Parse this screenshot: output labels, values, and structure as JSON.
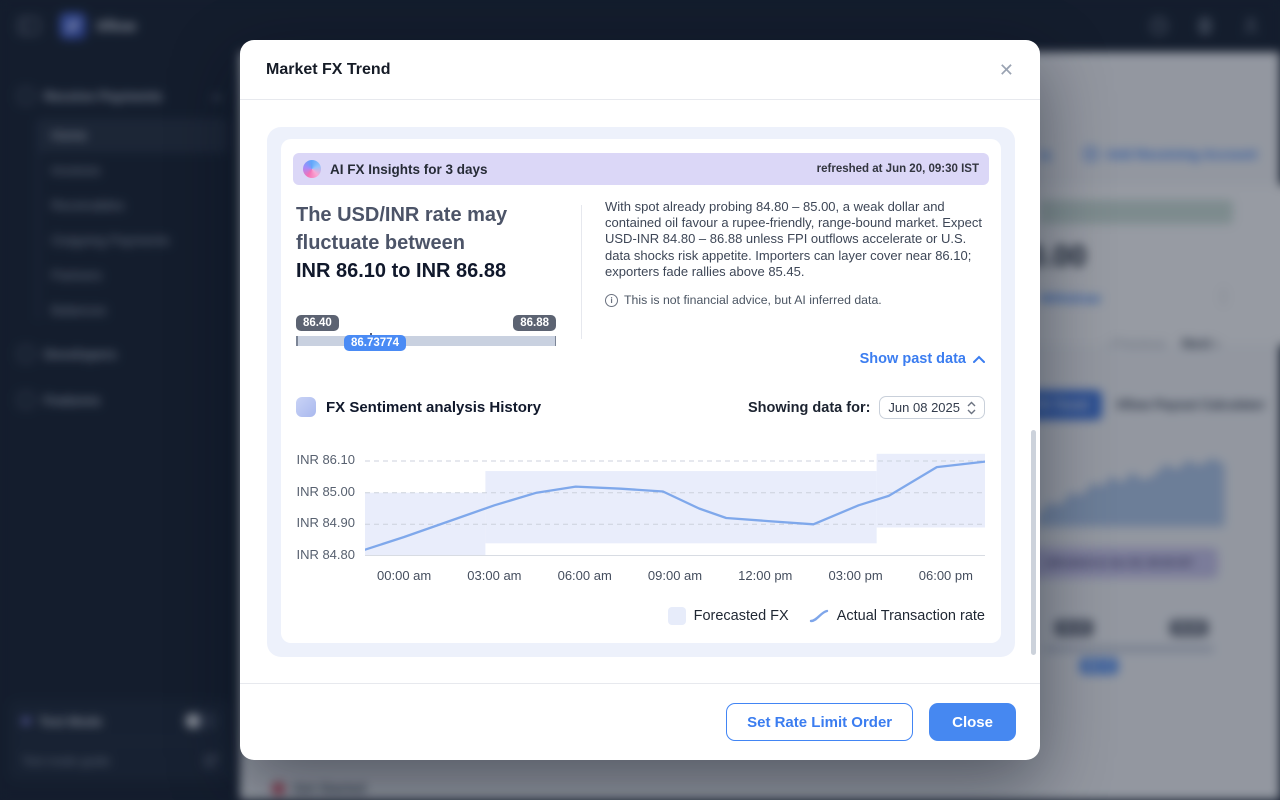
{
  "colors": {
    "accent_blue": "#4285f4",
    "chart_line_blue": "#7fa8eb",
    "forecast_band": "#e9edfb",
    "insights_bar_purple": "#dbd7f7",
    "outer_card_lavender": "#edf1fb"
  },
  "app": {
    "brand": "Xflow",
    "sidebar": {
      "section_label": "Receive Payments",
      "items": [
        {
          "label": "Home",
          "active": true
        },
        {
          "label": "Invoices",
          "active": false
        },
        {
          "label": "Receivables",
          "active": false
        },
        {
          "label": "Outgoing Payments",
          "active": false
        },
        {
          "label": "Partners",
          "active": false
        },
        {
          "label": "Balances",
          "active": false
        }
      ],
      "developers_label": "Developers",
      "features_label": "Features",
      "test_mode_label": "Test Mode",
      "test_mode_guide_label": "Test mode guide"
    },
    "background": {
      "details_fragment": "ls",
      "add_receiving_account": "Add Receiving Account",
      "balance_amount": "0.00",
      "withdraw_label": "Withdraw",
      "menu_glyph": "⋮",
      "previous_label": "‹ Previous",
      "next_label": "Next ›",
      "fx_trend_tab": "FX Trend",
      "payout_calculator_tab": "Xflow Payout Calculator",
      "refreshed_text": "refreshed at Jun 20, 09:30 IST",
      "mini_slider": {
        "min": "86.40",
        "max": "86.88",
        "value": "86.73"
      },
      "get_started": "Get Started"
    }
  },
  "modal": {
    "title": "Market FX Trend",
    "close_glyph": "✕",
    "insights": {
      "header": "AI FX Insights for 3 days",
      "refreshed": "refreshed at Jun 20, 09:30 IST",
      "headline_line1": "The USD/INR rate may",
      "headline_line2": "fluctuate between",
      "headline_range": "INR 86.10 to INR 86.88",
      "range_slider": {
        "min_label": "86.40",
        "max_label": "86.88",
        "current_label": "86.73774"
      },
      "summary": "With spot already probing 84.80 – 85.00, a weak dollar and contained oil favour a rupee-friendly, range-bound market. Expect USD-INR 84.80 – 86.88 unless FPI outflows accelerate or U.S. data shocks risk appetite. Importers can layer cover near 86.10; exporters fade rallies above 85.45.",
      "disclaimer": "This is not financial advice, but AI inferred data.",
      "info_glyph": "i",
      "show_past_label": "Show past data"
    },
    "history": {
      "title": "FX Sentiment analysis History",
      "showing_label": "Showing data for:",
      "date_value": "Jun 08 2025",
      "legend": [
        {
          "label": "Forecasted FX"
        },
        {
          "label": "Actual Transaction rate"
        }
      ]
    },
    "footer": {
      "set_rate_label": "Set Rate Limit Order",
      "close_label": "Close"
    }
  },
  "chart_data": {
    "type": "line",
    "title": "FX Sentiment analysis History",
    "x_ticks": [
      "00:00 am",
      "03:00 am",
      "06:00 am",
      "09:00 am",
      "12:00 pm",
      "03:00 pm",
      "06:00 pm"
    ],
    "tick_hours": [
      0,
      3,
      6,
      9,
      12,
      15,
      18
    ],
    "h_range": [
      -1.3,
      19.3
    ],
    "y_ticks": [
      "INR 86.10",
      "INR 85.00",
      "INR 84.90",
      "INR 84.80"
    ],
    "y_tick_values": [
      86.1,
      85.0,
      84.9,
      84.8
    ],
    "y_axis_note": "tick labels equally spaced (non-linear value scale)",
    "grid": "dashed horizontal gridlines",
    "legend_position": "bottom-right",
    "series": [
      {
        "name": "Forecasted FX",
        "type": "band",
        "color": "#e9edfb",
        "segments": [
          {
            "h0": -1.3,
            "h1": 2.7,
            "v0": 84.8,
            "v1": 85.0
          },
          {
            "h0": 2.7,
            "h1": 15.7,
            "v0": 84.84,
            "v1": 85.75
          },
          {
            "h0": 15.7,
            "h1": 19.3,
            "v0": 84.89,
            "v1": 86.35
          }
        ]
      },
      {
        "name": "Actual Transaction rate",
        "type": "line",
        "color": "#7fa8eb",
        "points": [
          {
            "h": -1.3,
            "v": 84.82
          },
          {
            "h": 0,
            "v": 84.86
          },
          {
            "h": 1.8,
            "v": 84.92
          },
          {
            "h": 3,
            "v": 84.96
          },
          {
            "h": 4.4,
            "v": 85.0
          },
          {
            "h": 5.7,
            "v": 85.21
          },
          {
            "h": 7.2,
            "v": 85.14
          },
          {
            "h": 8.6,
            "v": 85.04
          },
          {
            "h": 9.8,
            "v": 84.95
          },
          {
            "h": 10.7,
            "v": 84.92
          },
          {
            "h": 12.1,
            "v": 84.91
          },
          {
            "h": 13.6,
            "v": 84.9
          },
          {
            "h": 15.1,
            "v": 84.96
          },
          {
            "h": 16.1,
            "v": 84.99
          },
          {
            "h": 17.7,
            "v": 85.89
          },
          {
            "h": 19.3,
            "v": 86.08
          }
        ]
      }
    ]
  }
}
